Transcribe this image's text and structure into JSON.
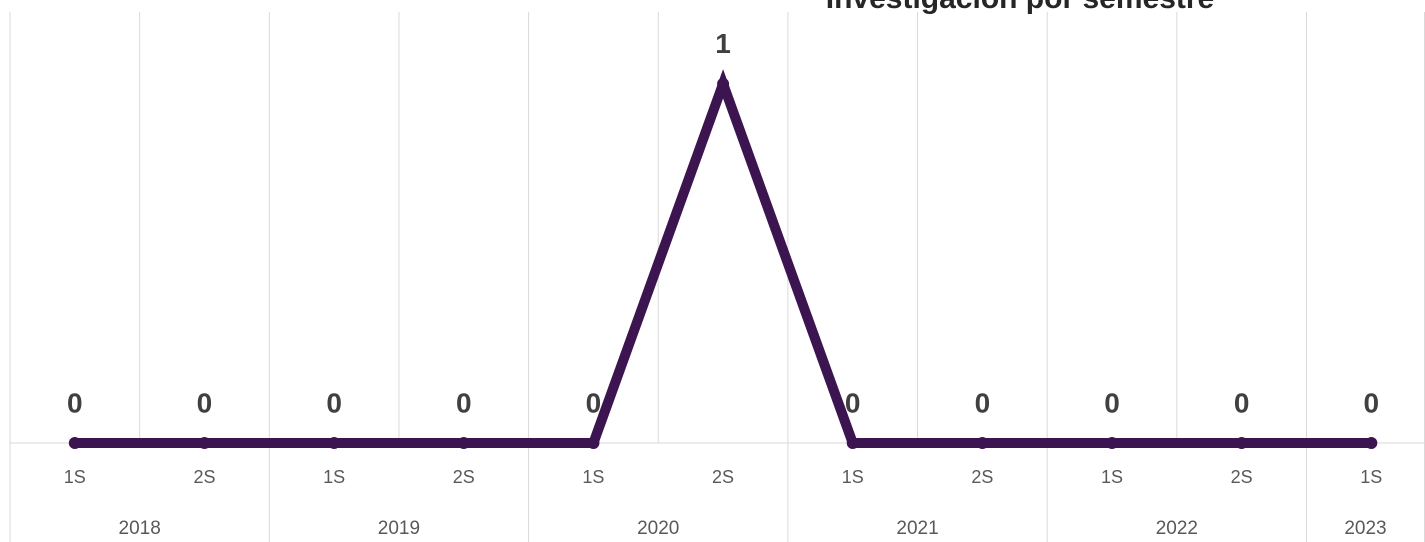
{
  "chart_data": {
    "type": "line",
    "title": "Investigación por semestre",
    "categories": [
      "1S",
      "2S",
      "1S",
      "2S",
      "1S",
      "2S",
      "1S",
      "2S",
      "1S",
      "2S",
      "1S"
    ],
    "groups": [
      {
        "label": "2018",
        "size": 2
      },
      {
        "label": "2019",
        "size": 2
      },
      {
        "label": "2020",
        "size": 2
      },
      {
        "label": "2021",
        "size": 2
      },
      {
        "label": "2022",
        "size": 2
      },
      {
        "label": "2023",
        "size": 1
      }
    ],
    "series": [
      {
        "color": "#3b1450",
        "values": [
          0,
          0,
          0,
          0,
          0,
          1,
          0,
          0,
          0,
          0,
          0
        ]
      }
    ],
    "ylim": [
      0,
      1.2
    ],
    "grid": true,
    "data_labels": true
  }
}
